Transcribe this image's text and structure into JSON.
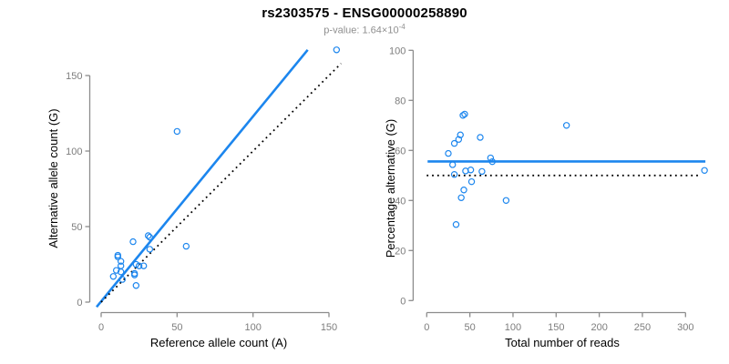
{
  "figure": {
    "title": "rs2303575 - ENSG00000258890",
    "subtitle_prefix": "p-value: 1.64×10",
    "subtitle_exponent": "-4"
  },
  "colors": {
    "accent_blue": "#1c86ee",
    "dotted_black": "#000000",
    "axis_gray": "#8c8c8c",
    "tick_label_gray": "#7d7d7d",
    "subtitle_gray": "#8f8f8f"
  },
  "chart_data": [
    {
      "type": "scatter",
      "title": "",
      "xlabel": "Reference allele count (A)",
      "ylabel": "Alternative allele count (G)",
      "xlim": [
        0,
        150
      ],
      "ylim": [
        0,
        150
      ],
      "xticks": [
        0,
        50,
        100,
        150
      ],
      "yticks": [
        0,
        50,
        100,
        150
      ],
      "grid": false,
      "legend": "none",
      "points": [
        [
          155,
          167
        ],
        [
          50,
          113
        ],
        [
          56,
          37
        ],
        [
          31,
          44
        ],
        [
          32,
          43
        ],
        [
          32,
          35
        ],
        [
          21,
          40
        ],
        [
          11,
          31
        ],
        [
          11,
          30
        ],
        [
          13,
          27
        ],
        [
          13,
          24
        ],
        [
          23,
          25
        ],
        [
          25,
          24
        ],
        [
          28,
          24
        ],
        [
          10,
          21
        ],
        [
          13,
          20
        ],
        [
          8,
          17
        ],
        [
          14,
          15
        ],
        [
          22,
          19
        ],
        [
          22,
          18
        ],
        [
          23,
          11
        ]
      ],
      "lines": [
        {
          "name": "regression-line",
          "style": "solid",
          "from": [
            -3,
            -3.2
          ],
          "to": [
            136,
            167
          ]
        },
        {
          "name": "identity-line",
          "style": "dotted",
          "from": [
            0,
            0
          ],
          "to": [
            158,
            158
          ]
        }
      ]
    },
    {
      "type": "scatter",
      "title": "",
      "xlabel": "Total number of reads",
      "ylabel": "Percentage alternative (G)",
      "xlim": [
        0,
        300
      ],
      "ylim": [
        0,
        100
      ],
      "xticks": [
        0,
        50,
        100,
        150,
        200,
        250,
        300
      ],
      "yticks": [
        0,
        20,
        40,
        60,
        80,
        100
      ],
      "grid": false,
      "legend": "none",
      "points": [
        [
          322,
          52
        ],
        [
          162,
          70
        ],
        [
          92,
          40
        ],
        [
          74,
          57
        ],
        [
          76,
          55.5
        ],
        [
          64,
          51.6
        ],
        [
          62,
          65.2
        ],
        [
          42,
          74
        ],
        [
          44,
          74.5
        ],
        [
          39,
          66.2
        ],
        [
          37,
          64.4
        ],
        [
          32,
          62.8
        ],
        [
          25,
          58.8
        ],
        [
          45,
          51.8
        ],
        [
          51,
          52.2
        ],
        [
          52,
          47.5
        ],
        [
          30,
          54.3
        ],
        [
          32,
          50.4
        ],
        [
          43,
          44.2
        ],
        [
          40,
          41.1
        ],
        [
          34,
          30.4
        ]
      ],
      "lines": [
        {
          "name": "mean-percentage-line",
          "style": "solid",
          "from": [
            1,
            55.6
          ],
          "to": [
            323,
            55.6
          ]
        },
        {
          "name": "expected-50pct-line",
          "style": "dotted",
          "from": [
            0,
            50
          ],
          "to": [
            316,
            50
          ]
        }
      ]
    }
  ]
}
